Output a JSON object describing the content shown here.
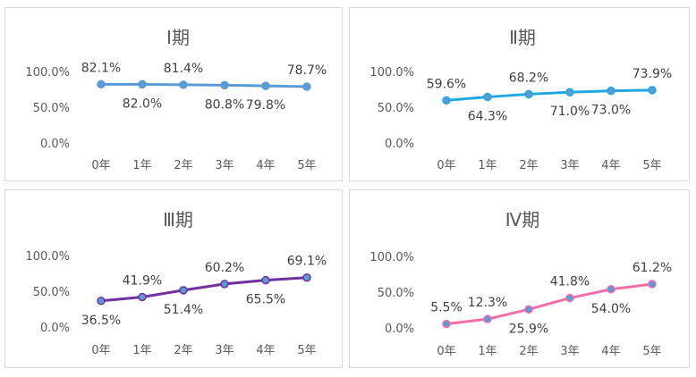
{
  "colors": {
    "panel_border": "#d9d9d9",
    "text": "#595959",
    "label_text": "#404040"
  },
  "chart_data": [
    {
      "type": "line",
      "title": "Ⅰ期",
      "categories": [
        "0年",
        "1年",
        "2年",
        "3年",
        "4年",
        "5年"
      ],
      "series": [
        {
          "values": [
            82.1,
            82.0,
            81.4,
            80.8,
            79.8,
            78.7
          ],
          "color": "#5b9bd5"
        }
      ],
      "data_labels": [
        "82.1%",
        "82.0%",
        "81.4%",
        "80.8%",
        "79.8%",
        "78.7%"
      ],
      "yticks": [
        "0.0%",
        "50.0%",
        "100.0%"
      ],
      "ylim": [
        0,
        100
      ],
      "grid": false,
      "legend": "none"
    },
    {
      "type": "line",
      "title": "Ⅱ期",
      "categories": [
        "0年",
        "1年",
        "2年",
        "3年",
        "4年",
        "5年"
      ],
      "series": [
        {
          "values": [
            59.6,
            64.3,
            68.2,
            71.0,
            73.0,
            73.9
          ],
          "color": "#1fa7e0"
        }
      ],
      "data_labels": [
        "59.6%",
        "64.3%",
        "68.2%",
        "71.0%",
        "73.0%",
        "73.9%"
      ],
      "yticks": [
        "0.0%",
        "50.0%",
        "100.0%"
      ],
      "ylim": [
        0,
        100
      ],
      "grid": false,
      "legend": "none"
    },
    {
      "type": "line",
      "title": "Ⅲ期",
      "categories": [
        "0年",
        "1年",
        "2年",
        "3年",
        "4年",
        "5年"
      ],
      "series": [
        {
          "values": [
            36.5,
            41.9,
            51.4,
            60.2,
            65.5,
            69.1
          ],
          "color": "#7030a0"
        }
      ],
      "data_labels": [
        "36.5%",
        "41.9%",
        "51.4%",
        "60.2%",
        "65.5%",
        "69.1%"
      ],
      "yticks": [
        "0.0%",
        "50.0%",
        "100.0%"
      ],
      "ylim": [
        0,
        100
      ],
      "grid": false,
      "legend": "none"
    },
    {
      "type": "line",
      "title": "Ⅳ期",
      "categories": [
        "0年",
        "1年",
        "2年",
        "3年",
        "4年",
        "5年"
      ],
      "series": [
        {
          "values": [
            5.5,
            12.3,
            25.9,
            41.8,
            54.0,
            61.2
          ],
          "color": "#f06ea9"
        }
      ],
      "data_labels": [
        "5.5%",
        "12.3%",
        "25.9%",
        "41.8%",
        "54.0%",
        "61.2%"
      ],
      "yticks": [
        "0.0%",
        "50.0%",
        "100.0%"
      ],
      "ylim": [
        0,
        100
      ],
      "grid": false,
      "legend": "none"
    }
  ]
}
